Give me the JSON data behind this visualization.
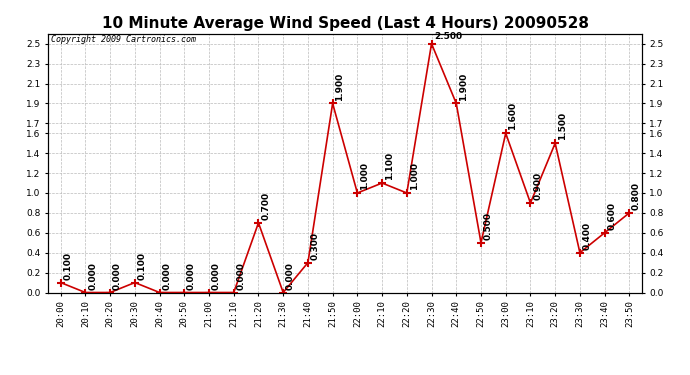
{
  "title": "10 Minute Average Wind Speed (Last 4 Hours) 20090528",
  "copyright": "Copyright 2009 Cartronics.com",
  "x_labels": [
    "20:00",
    "20:10",
    "20:20",
    "20:30",
    "20:40",
    "20:50",
    "21:00",
    "21:10",
    "21:20",
    "21:30",
    "21:40",
    "21:50",
    "22:00",
    "22:10",
    "22:20",
    "22:30",
    "22:40",
    "22:50",
    "23:00",
    "23:10",
    "23:20",
    "23:30",
    "23:40",
    "23:50"
  ],
  "y_values": [
    0.1,
    0.0,
    0.0,
    0.1,
    0.0,
    0.0,
    0.0,
    0.0,
    0.7,
    0.0,
    0.3,
    1.9,
    1.0,
    1.1,
    1.0,
    2.5,
    1.9,
    0.5,
    1.6,
    0.9,
    1.5,
    0.4,
    0.6,
    0.8
  ],
  "point_labels": [
    "0.100",
    "0.000",
    "0.000",
    "0.100",
    "0.000",
    "0.000",
    "0.000",
    "0.000",
    "0.700",
    "0.000",
    "0.300",
    "1.900",
    "1.000",
    "1.100",
    "1.000",
    "2.500",
    "1.900",
    "0.500",
    "1.600",
    "0.900",
    "1.500",
    "0.400",
    "0.600",
    "0.800"
  ],
  "line_color": "#CC0000",
  "marker_color": "#CC0000",
  "bg_color": "#FFFFFF",
  "plot_bg_color": "#FFFFFF",
  "grid_color": "#BBBBBB",
  "ylim": [
    0.0,
    2.6
  ],
  "ytick_vals": [
    0.0,
    0.2,
    0.4,
    0.6,
    0.8,
    1.0,
    1.2,
    1.4,
    1.6,
    1.7,
    1.9,
    2.1,
    2.3,
    2.5
  ],
  "title_fontsize": 11,
  "label_fontsize": 6.5,
  "annotation_fontsize": 6.5,
  "copyright_fontsize": 6
}
